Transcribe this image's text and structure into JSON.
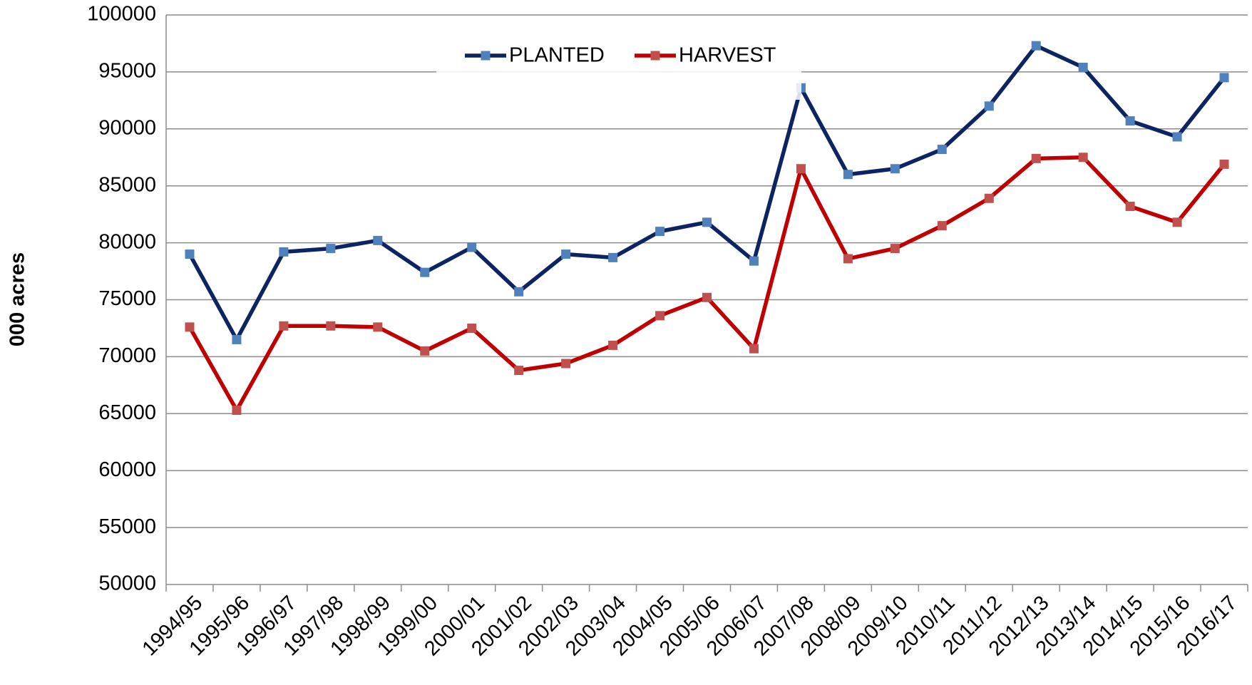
{
  "chart_data": {
    "type": "line",
    "y_label": "000 acres",
    "categories": [
      "1994/95",
      "1995/96",
      "1996/97",
      "1997/98",
      "1998/99",
      "1999/00",
      "2000/01",
      "2001/02",
      "2002/03",
      "2003/04",
      "2004/05",
      "2005/06",
      "2006/07",
      "2007/08",
      "2008/09",
      "2009/10",
      "2010/11",
      "2011/12",
      "2012/13",
      "2013/14",
      "2014/15",
      "2015/16",
      "2016/17"
    ],
    "series": [
      {
        "name": "PLANTED",
        "color": "#0d2463",
        "marker_color": "#4f81bd",
        "values": [
          79000,
          71500,
          79200,
          79500,
          80200,
          77400,
          79600,
          75700,
          79000,
          78700,
          81000,
          81800,
          78400,
          93600,
          86000,
          86500,
          88200,
          92000,
          97300,
          95400,
          90700,
          89300,
          94500
        ]
      },
      {
        "name": "HARVEST",
        "color": "#c00000",
        "marker_color": "#c0504d",
        "values": [
          72600,
          65300,
          72700,
          72700,
          72600,
          70500,
          72500,
          68800,
          69400,
          71000,
          73600,
          75200,
          70700,
          86500,
          78600,
          79500,
          81500,
          83900,
          87400,
          87500,
          83200,
          81800,
          86900
        ]
      }
    ],
    "ylim": [
      50000,
      100000
    ],
    "yticks": [
      50000,
      55000,
      60000,
      65000,
      70000,
      75000,
      80000,
      85000,
      90000,
      95000,
      100000
    ],
    "grid": true,
    "legend": "top"
  }
}
